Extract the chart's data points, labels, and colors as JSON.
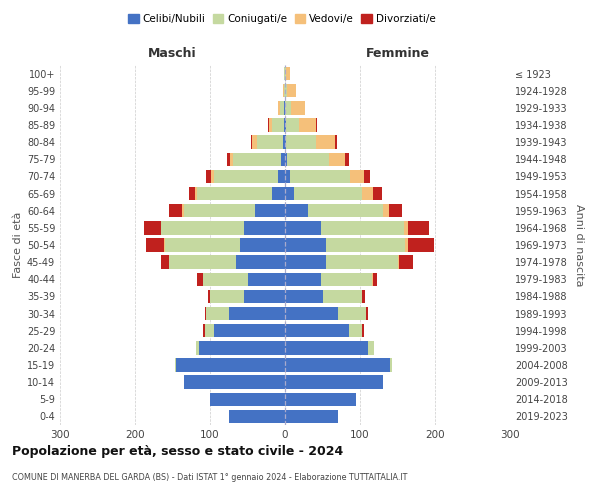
{
  "age_groups": [
    "0-4",
    "5-9",
    "10-14",
    "15-19",
    "20-24",
    "25-29",
    "30-34",
    "35-39",
    "40-44",
    "45-49",
    "50-54",
    "55-59",
    "60-64",
    "65-69",
    "70-74",
    "75-79",
    "80-84",
    "85-89",
    "90-94",
    "95-99",
    "100+"
  ],
  "birth_years": [
    "2019-2023",
    "2014-2018",
    "2009-2013",
    "2004-2008",
    "1999-2003",
    "1994-1998",
    "1989-1993",
    "1984-1988",
    "1979-1983",
    "1974-1978",
    "1969-1973",
    "1964-1968",
    "1959-1963",
    "1954-1958",
    "1949-1953",
    "1944-1948",
    "1939-1943",
    "1934-1938",
    "1929-1933",
    "1924-1928",
    "≤ 1923"
  ],
  "maschi_celibi": [
    75,
    100,
    135,
    145,
    115,
    95,
    75,
    55,
    50,
    65,
    60,
    55,
    40,
    18,
    10,
    5,
    3,
    2,
    1,
    0,
    0
  ],
  "maschi_coniugati": [
    0,
    0,
    0,
    2,
    4,
    12,
    30,
    45,
    60,
    90,
    100,
    110,
    95,
    100,
    85,
    65,
    35,
    15,
    6,
    2,
    1
  ],
  "maschi_vedovi": [
    0,
    0,
    0,
    0,
    0,
    0,
    0,
    0,
    0,
    0,
    1,
    1,
    2,
    2,
    4,
    3,
    6,
    4,
    3,
    1,
    0
  ],
  "maschi_divorziati": [
    0,
    0,
    0,
    0,
    0,
    2,
    2,
    3,
    8,
    10,
    25,
    22,
    18,
    8,
    7,
    4,
    2,
    2,
    0,
    0,
    0
  ],
  "femmine_celibi": [
    70,
    95,
    130,
    140,
    110,
    85,
    70,
    50,
    48,
    55,
    55,
    48,
    30,
    12,
    7,
    3,
    1,
    1,
    0,
    0,
    0
  ],
  "femmine_coniugati": [
    0,
    0,
    0,
    2,
    8,
    18,
    38,
    52,
    68,
    95,
    105,
    110,
    100,
    90,
    80,
    55,
    40,
    18,
    8,
    3,
    1
  ],
  "femmine_vedovi": [
    0,
    0,
    0,
    0,
    0,
    0,
    0,
    1,
    1,
    2,
    4,
    6,
    8,
    15,
    18,
    22,
    25,
    22,
    18,
    12,
    5
  ],
  "femmine_divorziati": [
    0,
    0,
    0,
    0,
    0,
    2,
    2,
    3,
    6,
    18,
    35,
    28,
    18,
    12,
    8,
    5,
    3,
    2,
    0,
    0,
    0
  ],
  "colors": {
    "celibi": "#4472c4",
    "coniugati": "#c5d9a0",
    "vedovi": "#f5c07a",
    "divorziati": "#c0211e"
  },
  "title": "Popolazione per età, sesso e stato civile - 2024",
  "subtitle": "COMUNE DI MANERBA DEL GARDA (BS) - Dati ISTAT 1° gennaio 2024 - Elaborazione TUTTAITALIA.IT",
  "xlabel_maschi": "Maschi",
  "xlabel_femmine": "Femmine",
  "ylabel": "Fasce di età",
  "ylabel_right": "Anni di nascita",
  "xlim": 300,
  "bg_color": "#ffffff",
  "grid_color": "#cccccc",
  "legend_labels": [
    "Celibi/Nubili",
    "Coniugati/e",
    "Vedovi/e",
    "Divorziati/e"
  ]
}
